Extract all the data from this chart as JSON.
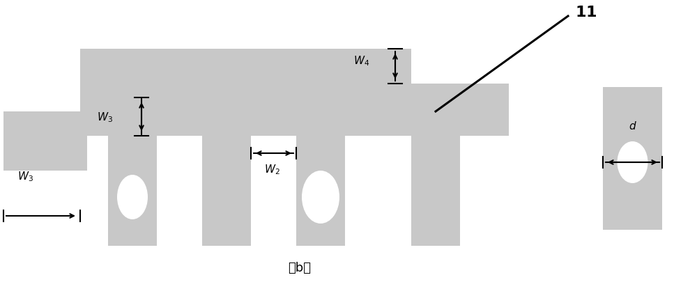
{
  "bg_color": "#ffffff",
  "gray_color": "#c8c8c8",
  "line_color": "#000000",
  "fig_width": 10.0,
  "fig_height": 4.06,
  "dpi": 100,
  "caption": "（b）"
}
